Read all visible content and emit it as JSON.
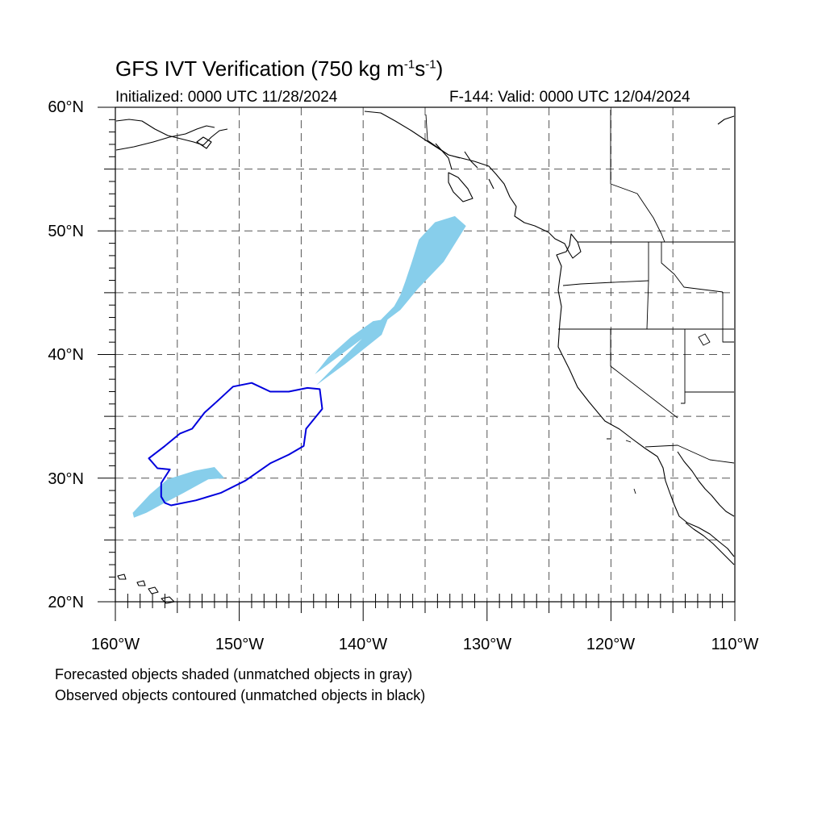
{
  "title": {
    "main": "GFS IVT Verification (750 kg m",
    "exp1": "-1",
    "mid": "s",
    "exp2": "-1",
    "end": ")"
  },
  "subtitle": {
    "initialized": "Initialized: 0000 UTC 11/28/2024",
    "valid": "F-144: Valid: 0000 UTC 12/04/2024"
  },
  "map": {
    "lon_range": [
      -160,
      -110
    ],
    "lat_range": [
      20,
      60
    ],
    "grid_lines": "dashed",
    "lat_labels": [
      "60°N",
      "50°N",
      "40°N",
      "30°N",
      "20°N"
    ],
    "lon_labels": [
      "160°W",
      "150°W",
      "140°W",
      "130°W",
      "120°W",
      "110°W"
    ],
    "colors": {
      "forecast_fill": "#87ceeb",
      "observed_contour": "#0000dd",
      "coastline": "#000000"
    },
    "forecast_object": {
      "label": "Forecasted objects shaded",
      "matched": true,
      "lonlat": [
        [
          -158.5,
          26.8
        ],
        [
          -157.5,
          27.2
        ],
        [
          -156.2,
          27.9
        ],
        [
          -154.5,
          28.8
        ],
        [
          -152.5,
          29.9
        ],
        [
          -151.2,
          30.0
        ],
        [
          -152.0,
          30.9
        ],
        [
          -153.6,
          30.6
        ],
        [
          -155.8,
          29.9
        ],
        [
          -157.2,
          28.7
        ],
        [
          -158.6,
          27.2
        ]
      ],
      "lonlat_band": [
        [
          -143.8,
          37.5
        ],
        [
          -141.5,
          39.2
        ],
        [
          -138.5,
          41.6
        ],
        [
          -138.0,
          42.9
        ],
        [
          -139.2,
          42.7
        ],
        [
          -141.0,
          41.4
        ],
        [
          -142.8,
          39.8
        ],
        [
          -143.9,
          38.4
        ],
        [
          -137.0,
          43.6
        ],
        [
          -135.6,
          45.3
        ],
        [
          -133.5,
          47.5
        ],
        [
          -131.7,
          50.4
        ],
        [
          -132.6,
          51.2
        ],
        [
          -134.2,
          50.7
        ],
        [
          -135.5,
          49.3
        ],
        [
          -136.1,
          47.4
        ],
        [
          -136.6,
          45.9
        ],
        [
          -137.0,
          44.8
        ],
        [
          -137.5,
          43.9
        ]
      ]
    },
    "observed_object": {
      "label": "Observed objects contoured",
      "matched": true,
      "lonlat": [
        [
          -156.0,
          28.0
        ],
        [
          -155.5,
          27.8
        ],
        [
          -153.5,
          28.2
        ],
        [
          -151.5,
          28.8
        ],
        [
          -149.5,
          29.8
        ],
        [
          -147.5,
          31.2
        ],
        [
          -146.0,
          31.9
        ],
        [
          -144.8,
          32.6
        ],
        [
          -144.6,
          34.0
        ],
        [
          -143.3,
          35.6
        ],
        [
          -143.5,
          37.2
        ],
        [
          -144.5,
          37.3
        ],
        [
          -146.0,
          37.0
        ],
        [
          -147.5,
          37.0
        ],
        [
          -149.0,
          37.7
        ],
        [
          -150.5,
          37.4
        ],
        [
          -151.8,
          36.2
        ],
        [
          -152.8,
          35.3
        ],
        [
          -153.8,
          34.0
        ],
        [
          -154.8,
          33.6
        ],
        [
          -156.0,
          32.6
        ],
        [
          -157.3,
          31.6
        ],
        [
          -156.6,
          30.8
        ],
        [
          -155.6,
          30.7
        ],
        [
          -156.3,
          29.6
        ],
        [
          -156.3,
          28.5
        ]
      ]
    }
  },
  "legend": {
    "forecast_note": "Forecasted objects shaded (unmatched objects in gray)",
    "observed_note": "Observed objects contoured (unmatched objects in black)"
  }
}
